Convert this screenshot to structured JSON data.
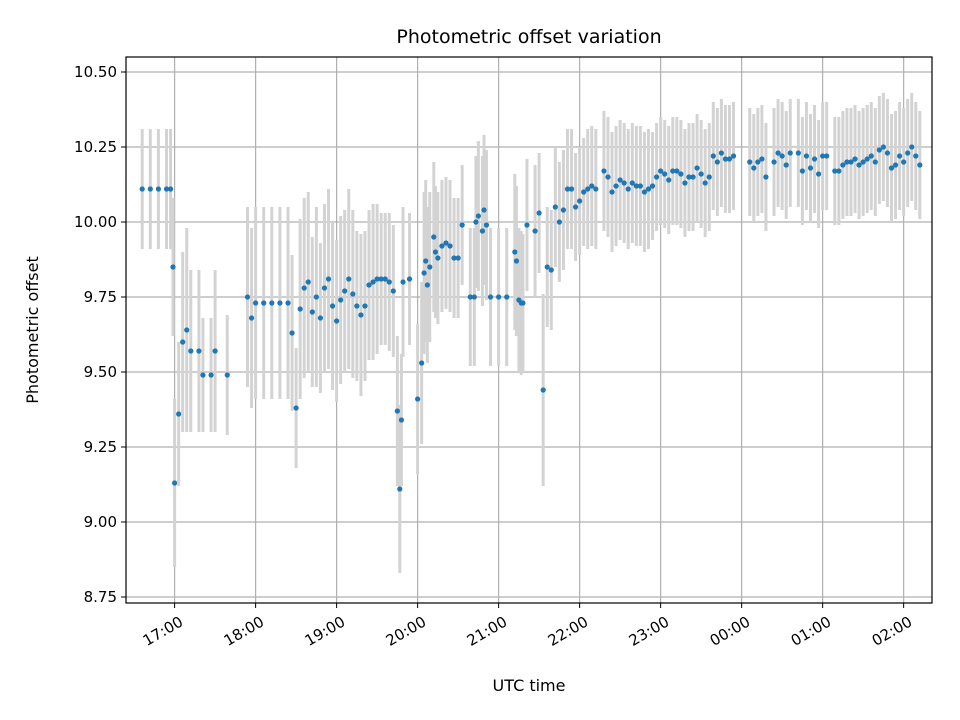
{
  "chart_data": {
    "type": "scatter",
    "title": "Photometric offset variation",
    "xlabel": "UTC time",
    "ylabel": "Photometric offset",
    "x_unit": "hours (UTC, continuing past midnight)",
    "xlim": [
      16.4,
      26.35
    ],
    "ylim": [
      8.73,
      10.55
    ],
    "grid": true,
    "x_ticks": [
      {
        "value": 17,
        "label": "17:00"
      },
      {
        "value": 18,
        "label": "18:00"
      },
      {
        "value": 19,
        "label": "19:00"
      },
      {
        "value": 20,
        "label": "20:00"
      },
      {
        "value": 21,
        "label": "21:00"
      },
      {
        "value": 22,
        "label": "22:00"
      },
      {
        "value": 23,
        "label": "23:00"
      },
      {
        "value": 24,
        "label": "00:00"
      },
      {
        "value": 25,
        "label": "01:00"
      },
      {
        "value": 26,
        "label": "02:00"
      }
    ],
    "y_ticks": [
      {
        "value": 8.75,
        "label": "8.75"
      },
      {
        "value": 9.0,
        "label": "9.00"
      },
      {
        "value": 9.25,
        "label": "9.25"
      },
      {
        "value": 9.5,
        "label": "9.50"
      },
      {
        "value": 9.75,
        "label": "9.75"
      },
      {
        "value": 10.0,
        "label": "10.00"
      },
      {
        "value": 10.25,
        "label": "10.25"
      },
      {
        "value": 10.5,
        "label": "10.50"
      }
    ],
    "colors": {
      "points": "#1f77b4",
      "errorbars": "#d3d3d3",
      "grid": "#b0b0b0"
    },
    "series": [
      {
        "points": [
          {
            "x": 16.6,
            "y": 10.11,
            "err": 0.2
          },
          {
            "x": 16.7,
            "y": 10.11,
            "err": 0.2
          },
          {
            "x": 16.8,
            "y": 10.11,
            "err": 0.2
          },
          {
            "x": 16.9,
            "y": 10.11,
            "err": 0.2
          },
          {
            "x": 16.95,
            "y": 10.11,
            "err": 0.2
          },
          {
            "x": 16.98,
            "y": 9.85,
            "err": 0.23
          },
          {
            "x": 17.0,
            "y": 9.13,
            "err": 0.28
          },
          {
            "x": 17.05,
            "y": 9.36,
            "err": 0.24
          },
          {
            "x": 17.1,
            "y": 9.6,
            "err": 0.3
          },
          {
            "x": 17.15,
            "y": 9.64,
            "err": 0.34
          },
          {
            "x": 17.2,
            "y": 9.57,
            "err": 0.27
          },
          {
            "x": 17.3,
            "y": 9.57,
            "err": 0.27
          },
          {
            "x": 17.35,
            "y": 9.49,
            "err": 0.19
          },
          {
            "x": 17.45,
            "y": 9.49,
            "err": 0.19
          },
          {
            "x": 17.5,
            "y": 9.57,
            "err": 0.27
          },
          {
            "x": 17.65,
            "y": 9.49,
            "err": 0.2
          },
          {
            "x": 17.9,
            "y": 9.75,
            "err": 0.3
          },
          {
            "x": 17.95,
            "y": 9.68,
            "err": 0.3
          },
          {
            "x": 18.0,
            "y": 9.73,
            "err": 0.32
          },
          {
            "x": 18.1,
            "y": 9.73,
            "err": 0.32
          },
          {
            "x": 18.2,
            "y": 9.73,
            "err": 0.32
          },
          {
            "x": 18.3,
            "y": 9.73,
            "err": 0.32
          },
          {
            "x": 18.4,
            "y": 9.73,
            "err": 0.32
          },
          {
            "x": 18.45,
            "y": 9.63,
            "err": 0.26
          },
          {
            "x": 18.5,
            "y": 9.38,
            "err": 0.2
          },
          {
            "x": 18.55,
            "y": 9.71,
            "err": 0.3
          },
          {
            "x": 18.6,
            "y": 9.78,
            "err": 0.3
          },
          {
            "x": 18.65,
            "y": 9.8,
            "err": 0.3
          },
          {
            "x": 18.7,
            "y": 9.7,
            "err": 0.25
          },
          {
            "x": 18.75,
            "y": 9.75,
            "err": 0.3
          },
          {
            "x": 18.8,
            "y": 9.68,
            "err": 0.25
          },
          {
            "x": 18.85,
            "y": 9.78,
            "err": 0.28
          },
          {
            "x": 18.9,
            "y": 9.81,
            "err": 0.3
          },
          {
            "x": 18.95,
            "y": 9.72,
            "err": 0.28
          },
          {
            "x": 19.0,
            "y": 9.67,
            "err": 0.27
          },
          {
            "x": 19.05,
            "y": 9.74,
            "err": 0.28
          },
          {
            "x": 19.1,
            "y": 9.77,
            "err": 0.27
          },
          {
            "x": 19.15,
            "y": 9.81,
            "err": 0.3
          },
          {
            "x": 19.2,
            "y": 9.76,
            "err": 0.28
          },
          {
            "x": 19.25,
            "y": 9.72,
            "err": 0.25
          },
          {
            "x": 19.3,
            "y": 9.69,
            "err": 0.27
          },
          {
            "x": 19.35,
            "y": 9.72,
            "err": 0.25
          },
          {
            "x": 19.4,
            "y": 9.79,
            "err": 0.25
          },
          {
            "x": 19.45,
            "y": 9.8,
            "err": 0.26
          },
          {
            "x": 19.5,
            "y": 9.81,
            "err": 0.25
          },
          {
            "x": 19.55,
            "y": 9.81,
            "err": 0.22
          },
          {
            "x": 19.6,
            "y": 9.81,
            "err": 0.22
          },
          {
            "x": 19.65,
            "y": 9.8,
            "err": 0.23
          },
          {
            "x": 19.7,
            "y": 9.77,
            "err": 0.22
          },
          {
            "x": 19.75,
            "y": 9.37,
            "err": 0.25
          },
          {
            "x": 19.78,
            "y": 9.11,
            "err": 0.28
          },
          {
            "x": 19.8,
            "y": 9.34,
            "err": 0.22
          },
          {
            "x": 19.82,
            "y": 9.8,
            "err": 0.25
          },
          {
            "x": 19.9,
            "y": 9.81,
            "err": 0.22
          },
          {
            "x": 20.0,
            "y": 9.41,
            "err": 0.25
          },
          {
            "x": 20.05,
            "y": 9.53,
            "err": 0.27
          },
          {
            "x": 20.08,
            "y": 9.83,
            "err": 0.27
          },
          {
            "x": 20.1,
            "y": 9.87,
            "err": 0.27
          },
          {
            "x": 20.12,
            "y": 9.79,
            "err": 0.26
          },
          {
            "x": 20.15,
            "y": 9.85,
            "err": 0.25
          },
          {
            "x": 20.2,
            "y": 9.95,
            "err": 0.25
          },
          {
            "x": 20.22,
            "y": 9.9,
            "err": 0.22
          },
          {
            "x": 20.25,
            "y": 9.88,
            "err": 0.22
          },
          {
            "x": 20.3,
            "y": 9.92,
            "err": 0.22
          },
          {
            "x": 20.35,
            "y": 9.93,
            "err": 0.22
          },
          {
            "x": 20.4,
            "y": 9.92,
            "err": 0.22
          },
          {
            "x": 20.45,
            "y": 9.88,
            "err": 0.2
          },
          {
            "x": 20.5,
            "y": 9.88,
            "err": 0.2
          },
          {
            "x": 20.55,
            "y": 9.99,
            "err": 0.2
          },
          {
            "x": 20.65,
            "y": 9.75,
            "err": 0.23
          },
          {
            "x": 20.7,
            "y": 9.75,
            "err": 0.23
          },
          {
            "x": 20.72,
            "y": 10.0,
            "err": 0.22
          },
          {
            "x": 20.75,
            "y": 10.02,
            "err": 0.25
          },
          {
            "x": 20.8,
            "y": 9.97,
            "err": 0.25
          },
          {
            "x": 20.82,
            "y": 10.04,
            "err": 0.25
          },
          {
            "x": 20.85,
            "y": 9.99,
            "err": 0.25
          },
          {
            "x": 20.9,
            "y": 9.75,
            "err": 0.23
          },
          {
            "x": 21.0,
            "y": 9.75,
            "err": 0.23
          },
          {
            "x": 21.1,
            "y": 9.75,
            "err": 0.23
          },
          {
            "x": 21.2,
            "y": 9.9,
            "err": 0.26
          },
          {
            "x": 21.22,
            "y": 9.87,
            "err": 0.25
          },
          {
            "x": 21.25,
            "y": 9.74,
            "err": 0.24
          },
          {
            "x": 21.28,
            "y": 9.73,
            "err": 0.24
          },
          {
            "x": 21.3,
            "y": 9.73,
            "err": 0.23
          },
          {
            "x": 21.35,
            "y": 9.99,
            "err": 0.22
          },
          {
            "x": 21.45,
            "y": 9.97,
            "err": 0.22
          },
          {
            "x": 21.5,
            "y": 10.03,
            "err": 0.2
          },
          {
            "x": 21.55,
            "y": 9.44,
            "err": 0.32
          },
          {
            "x": 21.6,
            "y": 9.85,
            "err": 0.2
          },
          {
            "x": 21.65,
            "y": 9.84,
            "err": 0.2
          },
          {
            "x": 21.7,
            "y": 10.05,
            "err": 0.2
          },
          {
            "x": 21.75,
            "y": 10.0,
            "err": 0.2
          },
          {
            "x": 21.8,
            "y": 10.04,
            "err": 0.2
          },
          {
            "x": 21.85,
            "y": 10.11,
            "err": 0.2
          },
          {
            "x": 21.9,
            "y": 10.11,
            "err": 0.2
          },
          {
            "x": 21.95,
            "y": 10.05,
            "err": 0.18
          },
          {
            "x": 22.0,
            "y": 10.07,
            "err": 0.18
          },
          {
            "x": 22.05,
            "y": 10.1,
            "err": 0.18
          },
          {
            "x": 22.1,
            "y": 10.11,
            "err": 0.2
          },
          {
            "x": 22.15,
            "y": 10.12,
            "err": 0.2
          },
          {
            "x": 22.2,
            "y": 10.11,
            "err": 0.2
          },
          {
            "x": 22.3,
            "y": 10.17,
            "err": 0.2
          },
          {
            "x": 22.35,
            "y": 10.15,
            "err": 0.2
          },
          {
            "x": 22.4,
            "y": 10.1,
            "err": 0.2
          },
          {
            "x": 22.45,
            "y": 10.12,
            "err": 0.2
          },
          {
            "x": 22.5,
            "y": 10.14,
            "err": 0.2
          },
          {
            "x": 22.55,
            "y": 10.13,
            "err": 0.2
          },
          {
            "x": 22.6,
            "y": 10.11,
            "err": 0.2
          },
          {
            "x": 22.65,
            "y": 10.13,
            "err": 0.2
          },
          {
            "x": 22.7,
            "y": 10.12,
            "err": 0.2
          },
          {
            "x": 22.75,
            "y": 10.12,
            "err": 0.2
          },
          {
            "x": 22.8,
            "y": 10.1,
            "err": 0.2
          },
          {
            "x": 22.85,
            "y": 10.11,
            "err": 0.2
          },
          {
            "x": 22.9,
            "y": 10.12,
            "err": 0.18
          },
          {
            "x": 22.95,
            "y": 10.15,
            "err": 0.18
          },
          {
            "x": 23.0,
            "y": 10.17,
            "err": 0.18
          },
          {
            "x": 23.05,
            "y": 10.16,
            "err": 0.18
          },
          {
            "x": 23.1,
            "y": 10.14,
            "err": 0.18
          },
          {
            "x": 23.15,
            "y": 10.17,
            "err": 0.18
          },
          {
            "x": 23.2,
            "y": 10.17,
            "err": 0.18
          },
          {
            "x": 23.25,
            "y": 10.16,
            "err": 0.18
          },
          {
            "x": 23.3,
            "y": 10.13,
            "err": 0.18
          },
          {
            "x": 23.35,
            "y": 10.15,
            "err": 0.18
          },
          {
            "x": 23.4,
            "y": 10.15,
            "err": 0.18
          },
          {
            "x": 23.45,
            "y": 10.18,
            "err": 0.18
          },
          {
            "x": 23.5,
            "y": 10.16,
            "err": 0.18
          },
          {
            "x": 23.55,
            "y": 10.13,
            "err": 0.18
          },
          {
            "x": 23.6,
            "y": 10.15,
            "err": 0.18
          },
          {
            "x": 23.65,
            "y": 10.22,
            "err": 0.18
          },
          {
            "x": 23.7,
            "y": 10.2,
            "err": 0.18
          },
          {
            "x": 23.75,
            "y": 10.23,
            "err": 0.18
          },
          {
            "x": 23.8,
            "y": 10.21,
            "err": 0.18
          },
          {
            "x": 23.85,
            "y": 10.21,
            "err": 0.18
          },
          {
            "x": 23.9,
            "y": 10.22,
            "err": 0.18
          },
          {
            "x": 24.1,
            "y": 10.2,
            "err": 0.18
          },
          {
            "x": 24.15,
            "y": 10.18,
            "err": 0.18
          },
          {
            "x": 24.2,
            "y": 10.2,
            "err": 0.18
          },
          {
            "x": 24.25,
            "y": 10.21,
            "err": 0.18
          },
          {
            "x": 24.3,
            "y": 10.15,
            "err": 0.18
          },
          {
            "x": 24.4,
            "y": 10.2,
            "err": 0.18
          },
          {
            "x": 24.45,
            "y": 10.23,
            "err": 0.18
          },
          {
            "x": 24.5,
            "y": 10.22,
            "err": 0.18
          },
          {
            "x": 24.55,
            "y": 10.19,
            "err": 0.18
          },
          {
            "x": 24.6,
            "y": 10.23,
            "err": 0.18
          },
          {
            "x": 24.7,
            "y": 10.23,
            "err": 0.18
          },
          {
            "x": 24.75,
            "y": 10.17,
            "err": 0.18
          },
          {
            "x": 24.8,
            "y": 10.22,
            "err": 0.18
          },
          {
            "x": 24.85,
            "y": 10.18,
            "err": 0.18
          },
          {
            "x": 24.9,
            "y": 10.21,
            "err": 0.18
          },
          {
            "x": 24.95,
            "y": 10.16,
            "err": 0.18
          },
          {
            "x": 25.0,
            "y": 10.22,
            "err": 0.18
          },
          {
            "x": 25.05,
            "y": 10.22,
            "err": 0.18
          },
          {
            "x": 25.15,
            "y": 10.17,
            "err": 0.18
          },
          {
            "x": 25.2,
            "y": 10.17,
            "err": 0.18
          },
          {
            "x": 25.25,
            "y": 10.19,
            "err": 0.18
          },
          {
            "x": 25.3,
            "y": 10.2,
            "err": 0.18
          },
          {
            "x": 25.35,
            "y": 10.2,
            "err": 0.18
          },
          {
            "x": 25.4,
            "y": 10.21,
            "err": 0.18
          },
          {
            "x": 25.45,
            "y": 10.19,
            "err": 0.18
          },
          {
            "x": 25.5,
            "y": 10.2,
            "err": 0.18
          },
          {
            "x": 25.55,
            "y": 10.21,
            "err": 0.18
          },
          {
            "x": 25.6,
            "y": 10.22,
            "err": 0.18
          },
          {
            "x": 25.65,
            "y": 10.2,
            "err": 0.18
          },
          {
            "x": 25.7,
            "y": 10.24,
            "err": 0.18
          },
          {
            "x": 25.75,
            "y": 10.25,
            "err": 0.18
          },
          {
            "x": 25.8,
            "y": 10.23,
            "err": 0.18
          },
          {
            "x": 25.85,
            "y": 10.18,
            "err": 0.18
          },
          {
            "x": 25.9,
            "y": 10.19,
            "err": 0.18
          },
          {
            "x": 25.95,
            "y": 10.22,
            "err": 0.18
          },
          {
            "x": 26.0,
            "y": 10.2,
            "err": 0.18
          },
          {
            "x": 26.05,
            "y": 10.23,
            "err": 0.18
          },
          {
            "x": 26.1,
            "y": 10.25,
            "err": 0.18
          },
          {
            "x": 26.15,
            "y": 10.22,
            "err": 0.18
          },
          {
            "x": 26.2,
            "y": 10.19,
            "err": 0.18
          }
        ]
      }
    ]
  }
}
